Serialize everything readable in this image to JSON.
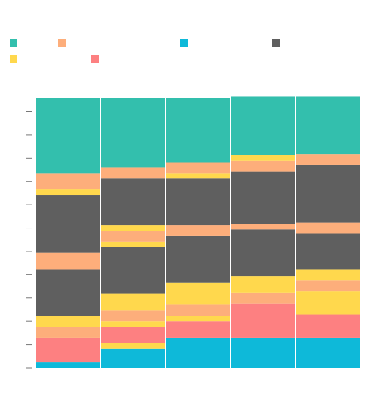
{
  "chart_data": {
    "type": "bar",
    "title": "",
    "xlabel": "",
    "ylabel": "",
    "stacked": true,
    "grid": false,
    "legend_position": "top",
    "categories": [
      "",
      "",
      "",
      "",
      ""
    ],
    "ylim": [
      0,
      100
    ],
    "y_ticks": [
      0,
      8.5,
      17,
      25.5,
      34,
      42.5,
      51,
      59.5,
      68,
      76.5,
      85,
      93.5
    ],
    "series_colors": {
      "teal": "#33bfad",
      "salmon": "#fdae7b",
      "cyan": "#0eb9d9",
      "gray": "#5f5f5f",
      "yellow": "#ffd84d",
      "pink": "#fd8081"
    },
    "legend": [
      {
        "color": "#33bfad",
        "label": ""
      },
      {
        "color": "#fdae7b",
        "label": ""
      },
      {
        "color": "#0eb9d9",
        "label": ""
      },
      {
        "color": "#5f5f5f",
        "label": ""
      },
      {
        "color": "#ffd84d",
        "label": ""
      },
      {
        "color": "#fd8081",
        "label": ""
      }
    ],
    "stacks": [
      [
        {
          "color": "#0eb9d9",
          "value": 2
        },
        {
          "color": "#fd8081",
          "value": 9
        },
        {
          "color": "#fdae7b",
          "value": 4
        },
        {
          "color": "#ffd84d",
          "value": 4
        },
        {
          "color": "#5f5f5f",
          "value": 17
        },
        {
          "color": "#fdae7b",
          "value": 6
        },
        {
          "color": "#5f5f5f",
          "value": 21
        },
        {
          "color": "#ffd84d",
          "value": 2
        },
        {
          "color": "#fdae7b",
          "value": 6
        },
        {
          "color": "#33bfad",
          "value": 27.5
        }
      ],
      [
        {
          "color": "#0eb9d9",
          "value": 7
        },
        {
          "color": "#ffd84d",
          "value": 2
        },
        {
          "color": "#fd8081",
          "value": 6
        },
        {
          "color": "#ffd84d",
          "value": 2
        },
        {
          "color": "#fdae7b",
          "value": 4
        },
        {
          "color": "#ffd84d",
          "value": 6
        },
        {
          "color": "#5f5f5f",
          "value": 17
        },
        {
          "color": "#ffd84d",
          "value": 2
        },
        {
          "color": "#fdae7b",
          "value": 4
        },
        {
          "color": "#ffd84d",
          "value": 2
        },
        {
          "color": "#5f5f5f",
          "value": 17
        },
        {
          "color": "#fdae7b",
          "value": 4
        },
        {
          "color": "#33bfad",
          "value": 25.5
        }
      ],
      [
        {
          "color": "#0eb9d9",
          "value": 11
        },
        {
          "color": "#fd8081",
          "value": 6
        },
        {
          "color": "#ffd84d",
          "value": 2
        },
        {
          "color": "#fdae7b",
          "value": 4
        },
        {
          "color": "#ffd84d",
          "value": 8
        },
        {
          "color": "#5f5f5f",
          "value": 17
        },
        {
          "color": "#fdae7b",
          "value": 4
        },
        {
          "color": "#5f5f5f",
          "value": 17
        },
        {
          "color": "#ffd84d",
          "value": 2
        },
        {
          "color": "#fdae7b",
          "value": 4
        },
        {
          "color": "#33bfad",
          "value": 23.5
        }
      ],
      [
        {
          "color": "#0eb9d9",
          "value": 11
        },
        {
          "color": "#fd8081",
          "value": 12.5
        },
        {
          "color": "#fdae7b",
          "value": 4
        },
        {
          "color": "#ffd84d",
          "value": 6
        },
        {
          "color": "#5f5f5f",
          "value": 17
        },
        {
          "color": "#fdae7b",
          "value": 2
        },
        {
          "color": "#5f5f5f",
          "value": 19
        },
        {
          "color": "#fdae7b",
          "value": 4
        },
        {
          "color": "#ffd84d",
          "value": 2
        },
        {
          "color": "#33bfad",
          "value": 21.5
        }
      ],
      [
        {
          "color": "#0eb9d9",
          "value": 11
        },
        {
          "color": "#fd8081",
          "value": 8.5
        },
        {
          "color": "#ffd84d",
          "value": 8.5
        },
        {
          "color": "#fdae7b",
          "value": 4
        },
        {
          "color": "#ffd84d",
          "value": 4
        },
        {
          "color": "#5f5f5f",
          "value": 13
        },
        {
          "color": "#fdae7b",
          "value": 4
        },
        {
          "color": "#5f5f5f",
          "value": 21
        },
        {
          "color": "#fdae7b",
          "value": 4
        },
        {
          "color": "#33bfad",
          "value": 21
        }
      ]
    ]
  }
}
